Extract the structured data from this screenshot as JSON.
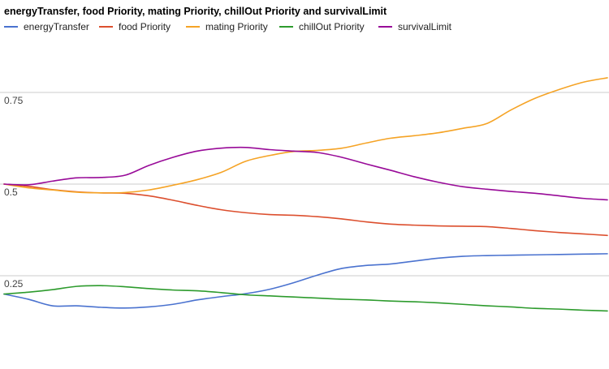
{
  "chart_data": {
    "type": "line",
    "title": "energyTransfer, food Priority, mating Priority, chillOut Priority and survivalLimit",
    "xlabel": "",
    "ylabel": "",
    "ylim": [
      0.0,
      1.0
    ],
    "yticks": [
      {
        "value": 0.25,
        "label": "0.25"
      },
      {
        "value": 0.5,
        "label": "0.5"
      },
      {
        "value": 0.75,
        "label": "0.75"
      }
    ],
    "grid": true,
    "legend_position": "top",
    "x": [
      0,
      1,
      2,
      3,
      4,
      5,
      6,
      7,
      8,
      9,
      10,
      11,
      12,
      13,
      14,
      15,
      16,
      17,
      18,
      19,
      20,
      21,
      22,
      23,
      24,
      25
    ],
    "series": [
      {
        "name": "energyTransfer",
        "color": "#4a72cf",
        "values": [
          0.2,
          0.186,
          0.168,
          0.168,
          0.164,
          0.162,
          0.165,
          0.172,
          0.184,
          0.193,
          0.201,
          0.213,
          0.231,
          0.252,
          0.27,
          0.278,
          0.282,
          0.29,
          0.298,
          0.303,
          0.305,
          0.306,
          0.307,
          0.308,
          0.309,
          0.31
        ]
      },
      {
        "name": "food Priority",
        "color": "#dc4f2e",
        "values": [
          0.5,
          0.494,
          0.485,
          0.479,
          0.476,
          0.475,
          0.468,
          0.456,
          0.442,
          0.43,
          0.422,
          0.417,
          0.415,
          0.411,
          0.405,
          0.397,
          0.391,
          0.388,
          0.386,
          0.385,
          0.384,
          0.379,
          0.373,
          0.368,
          0.364,
          0.36
        ]
      },
      {
        "name": "mating Priority",
        "color": "#f5a325",
        "values": [
          0.5,
          0.49,
          0.484,
          0.478,
          0.476,
          0.477,
          0.484,
          0.497,
          0.512,
          0.532,
          0.562,
          0.578,
          0.589,
          0.592,
          0.598,
          0.612,
          0.625,
          0.632,
          0.64,
          0.652,
          0.665,
          0.702,
          0.734,
          0.758,
          0.778,
          0.79
        ]
      },
      {
        "name": "chillOut Priority",
        "color": "#2d9b2d",
        "values": [
          0.2,
          0.205,
          0.212,
          0.221,
          0.223,
          0.22,
          0.215,
          0.211,
          0.209,
          0.204,
          0.198,
          0.195,
          0.192,
          0.189,
          0.186,
          0.184,
          0.181,
          0.179,
          0.176,
          0.172,
          0.168,
          0.165,
          0.161,
          0.159,
          0.156,
          0.154
        ]
      },
      {
        "name": "survivalLimit",
        "color": "#980a98",
        "values": [
          0.5,
          0.498,
          0.508,
          0.517,
          0.518,
          0.524,
          0.551,
          0.573,
          0.59,
          0.598,
          0.6,
          0.594,
          0.59,
          0.586,
          0.573,
          0.555,
          0.538,
          0.52,
          0.505,
          0.493,
          0.486,
          0.48,
          0.475,
          0.468,
          0.461,
          0.457
        ]
      }
    ]
  }
}
